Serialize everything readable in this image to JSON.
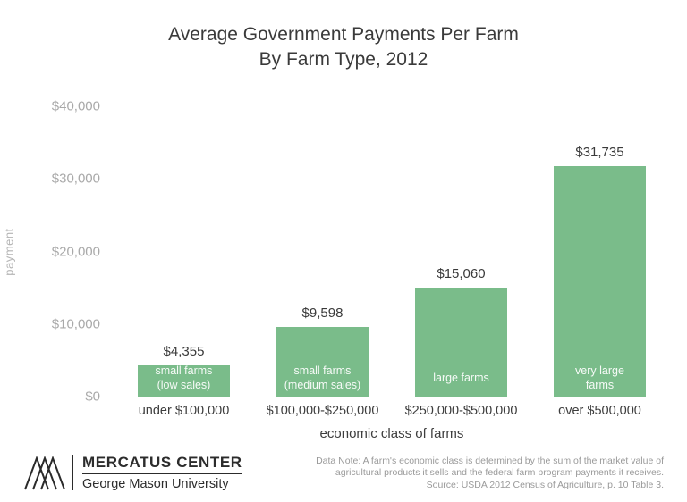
{
  "title": {
    "line1": "Average Government Payments Per Farm",
    "line2": "By Farm Type, 2012"
  },
  "chart_data": {
    "type": "bar",
    "title": "Average Government Payments Per Farm By Farm Type, 2012",
    "categories": [
      "under $100,000",
      "$100,000-$250,000",
      "$250,000-$500,000",
      "over $500,000"
    ],
    "values": [
      4355,
      9598,
      15060,
      31735
    ],
    "value_labels": [
      "$4,355",
      "$9,598",
      "$15,060",
      "$31,735"
    ],
    "bar_labels": [
      [
        "small farms",
        "(low sales)"
      ],
      [
        "small farms",
        "(medium sales)"
      ],
      [
        "large farms"
      ],
      [
        "very large",
        "farms"
      ]
    ],
    "xlabel": "economic class of farms",
    "ylabel": "payment",
    "ylim": [
      0,
      40000
    ],
    "yticks": [
      {
        "value": 0,
        "label": "$0"
      },
      {
        "value": 10000,
        "label": "$10,000"
      },
      {
        "value": 20000,
        "label": "$20,000"
      },
      {
        "value": 30000,
        "label": "$30,000"
      },
      {
        "value": 40000,
        "label": "$40,000"
      }
    ],
    "bar_color": "#7abc8a",
    "grid": false,
    "legend": null
  },
  "footer": {
    "logo_title": "MERCATUS CENTER",
    "logo_subtitle": "George Mason University",
    "note_lines": [
      "Data Note: A farm's economic class is determined by the sum of the market value of",
      "agricultural products it sells  and the federal farm program payments it receives.",
      "Source: USDA 2012 Census of Agriculture, p. 10 Table 3."
    ]
  }
}
